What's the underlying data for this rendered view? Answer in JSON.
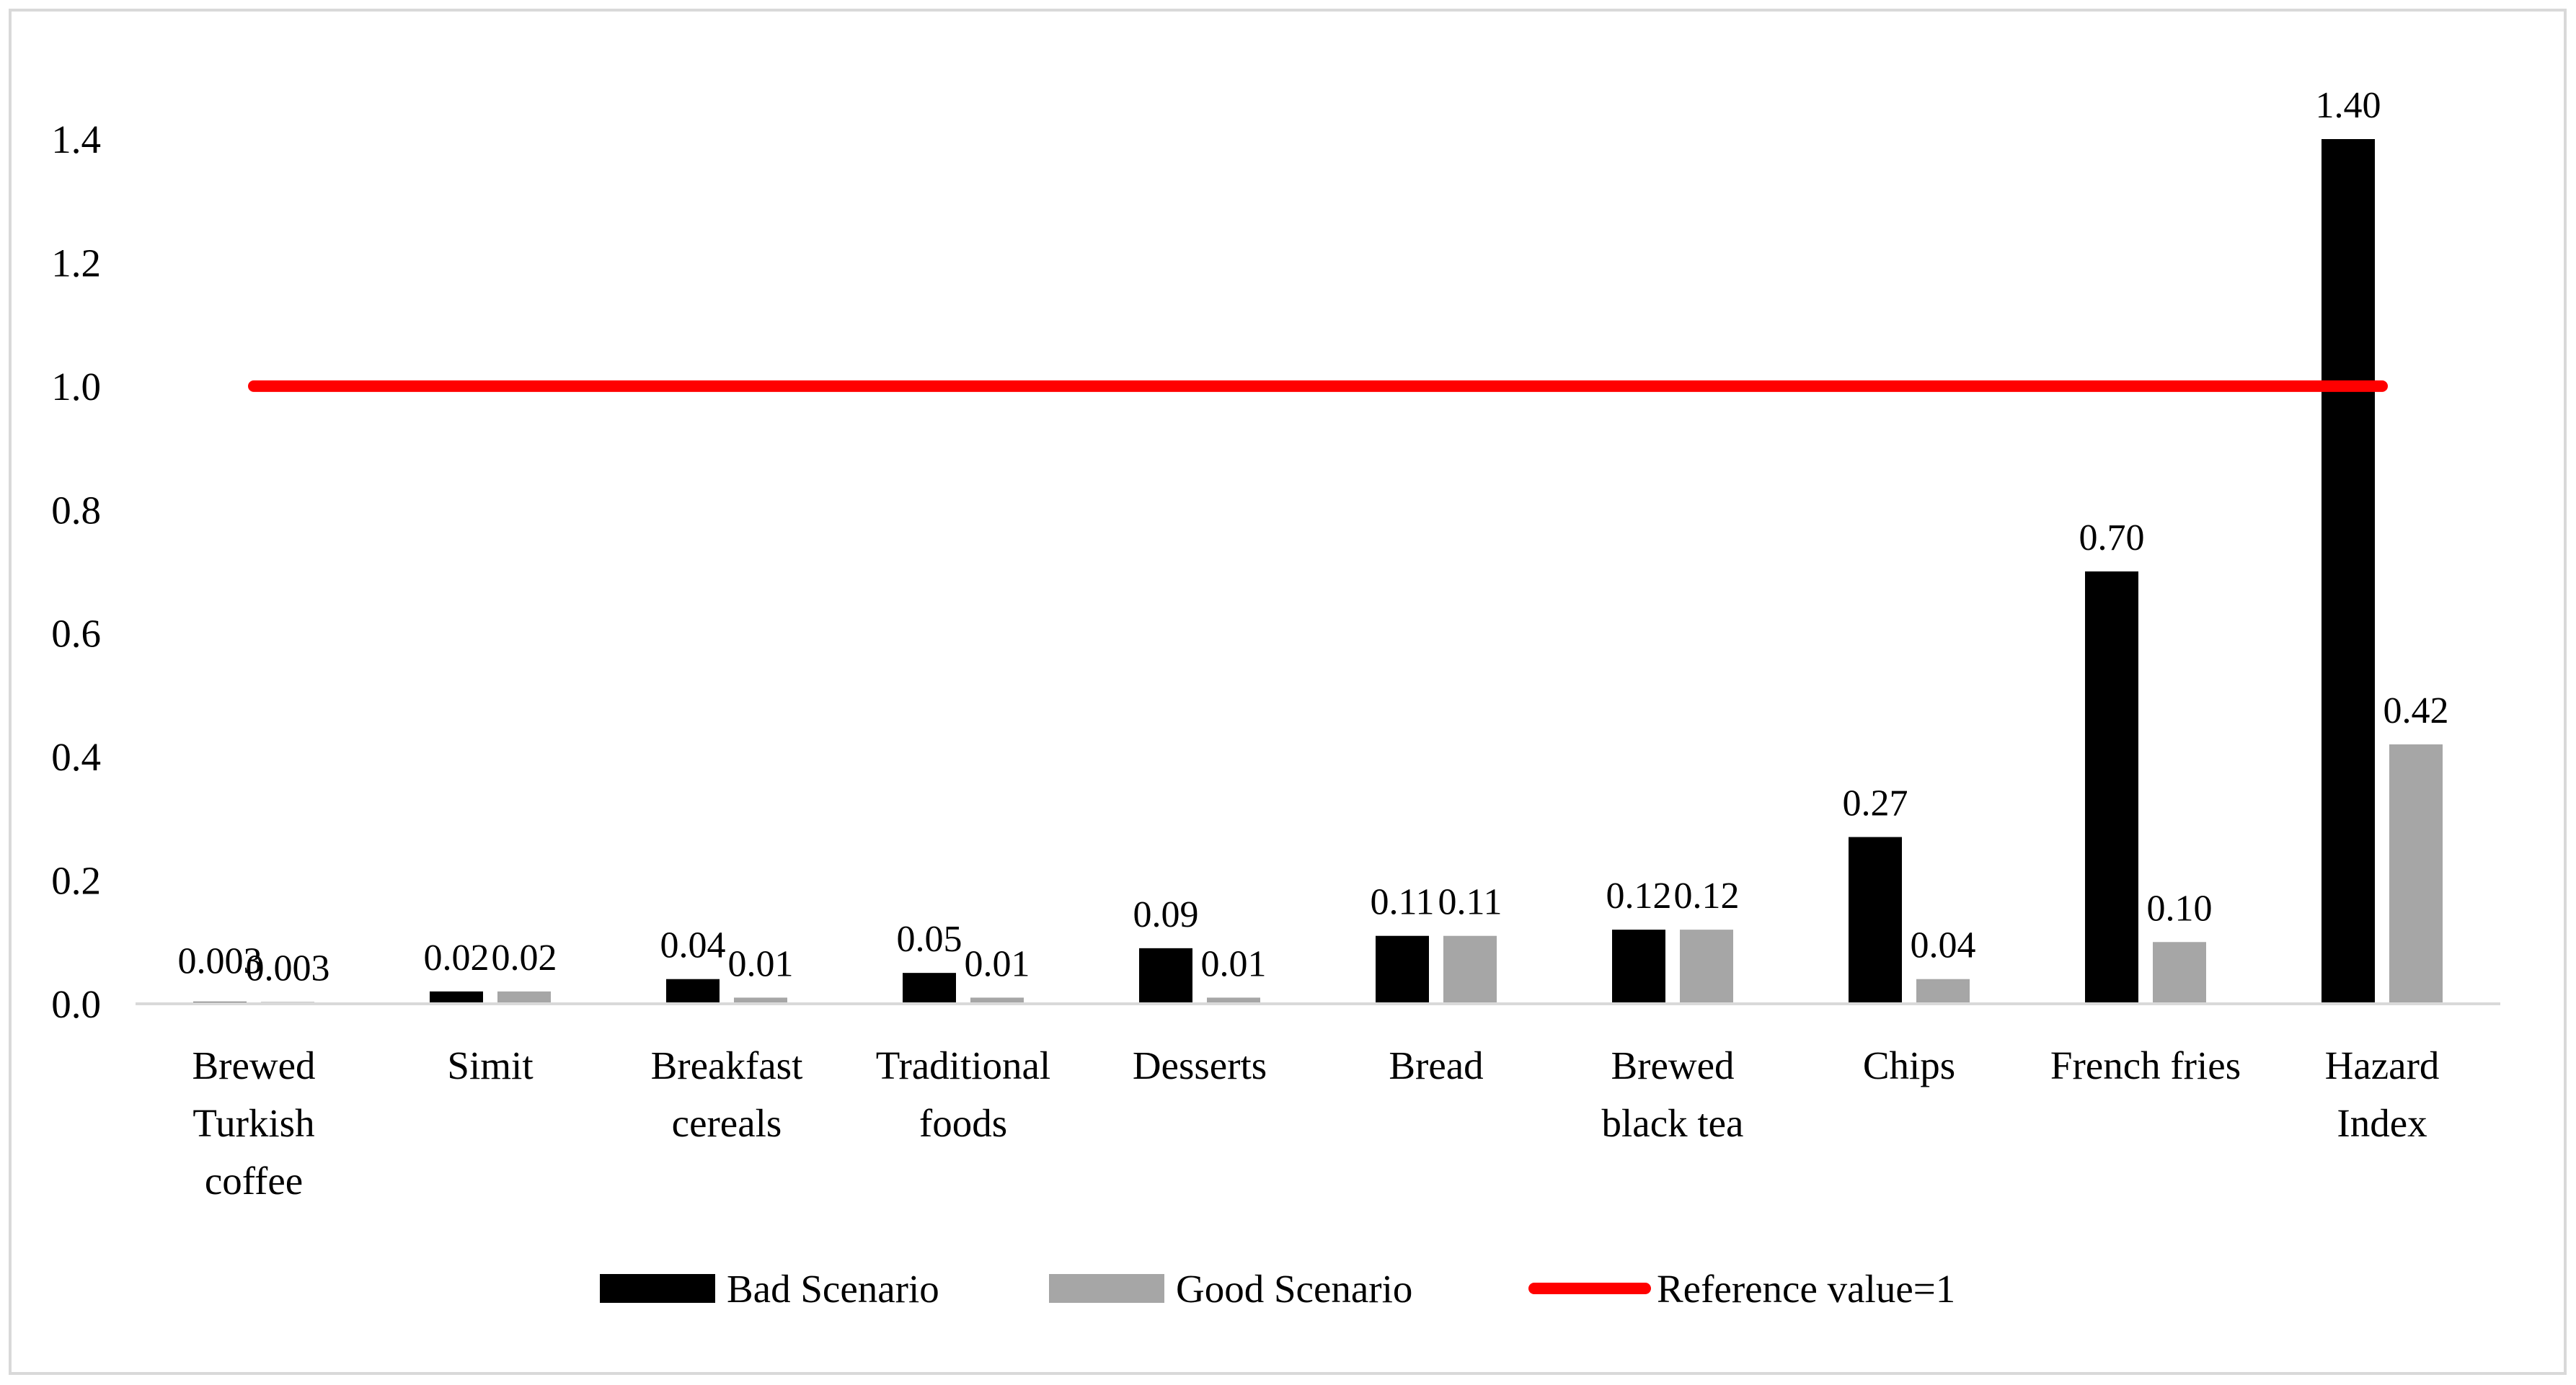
{
  "chart_data": {
    "type": "bar",
    "title": "",
    "xlabel": "",
    "ylabel": "",
    "ylim": [
      0,
      1.4
    ],
    "yticks": [
      "0.0",
      "0.2",
      "0.4",
      "0.6",
      "0.8",
      "1.0",
      "1.2",
      "1.4"
    ],
    "grid": false,
    "legend_position": "bottom",
    "categories": [
      [
        "Brewed",
        "Turkish",
        "coffee"
      ],
      [
        "Simit"
      ],
      [
        "Breakfast",
        "cereals"
      ],
      [
        "Traditional",
        "foods"
      ],
      [
        "Desserts"
      ],
      [
        "Bread"
      ],
      [
        "Brewed",
        "black tea"
      ],
      [
        "Chips"
      ],
      [
        "French fries"
      ],
      [
        "Hazard",
        "Index"
      ]
    ],
    "series": [
      {
        "name": "Bad Scenario",
        "color": "#000000",
        "values": [
          0.003,
          0.02,
          0.04,
          0.05,
          0.09,
          0.11,
          0.12,
          0.27,
          0.7,
          1.4
        ],
        "labels": [
          "0.003",
          "0.02",
          "0.04",
          "0.05",
          "0.09",
          "0.11",
          "0.12",
          "0.27",
          "0.70",
          "1.40"
        ]
      },
      {
        "name": "Good Scenario",
        "color": "#a6a6a6",
        "values": [
          0.003,
          0.02,
          0.01,
          0.01,
          0.01,
          0.11,
          0.12,
          0.04,
          0.1,
          0.42
        ],
        "labels": [
          "0.003",
          "0.02",
          "0.01",
          "0.01",
          "0.01",
          "0.11",
          "0.12",
          "0.04",
          "0.10",
          "0.42"
        ]
      }
    ],
    "reference_line": {
      "name": "Reference value=1",
      "value": 1.0,
      "color": "#ff0000"
    }
  }
}
